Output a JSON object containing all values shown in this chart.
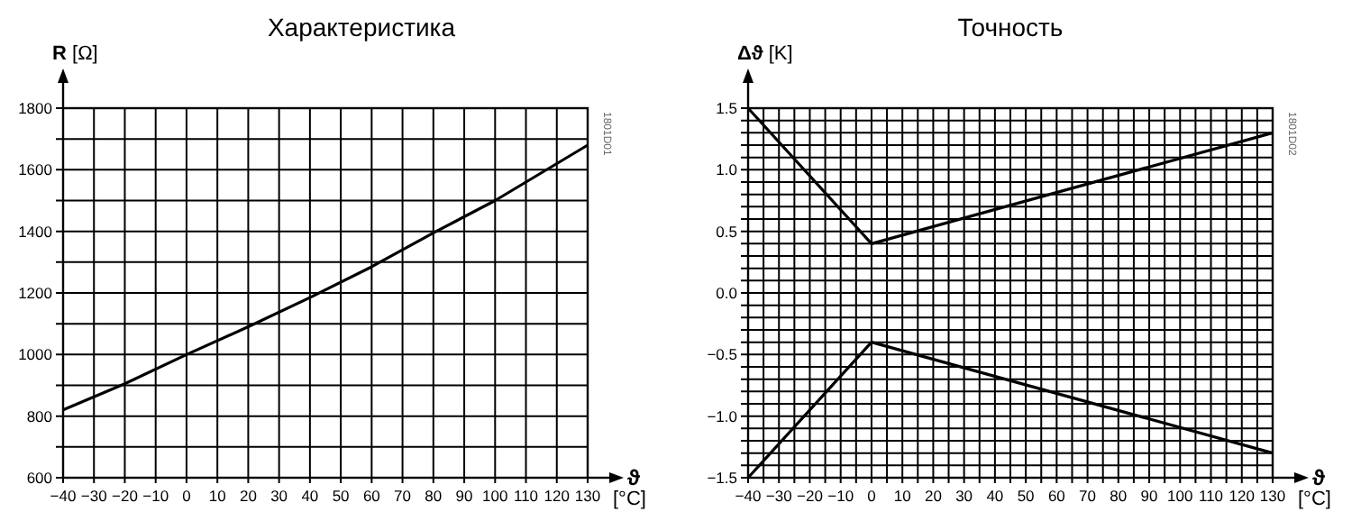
{
  "chart_data": [
    {
      "type": "line",
      "title": "Характеристика",
      "ylabel": "R [Ω]",
      "xlabel": "ϑ [°C]",
      "grid": true,
      "marker": "none",
      "line_style": "solid",
      "annotations": [
        "1801D01"
      ],
      "xlim": [
        -40,
        130
      ],
      "ylim": [
        600,
        1800
      ],
      "xticks": [
        {
          "value": -40,
          "label": "−40"
        },
        {
          "value": -30,
          "label": "−30"
        },
        {
          "value": -20,
          "label": "−20"
        },
        {
          "value": -10,
          "label": "−10"
        },
        0,
        10,
        20,
        30,
        40,
        50,
        60,
        70,
        80,
        90,
        100,
        110,
        120,
        130
      ],
      "yticks": [
        600,
        {
          "value": 700,
          "label": null
        },
        800,
        {
          "value": 900,
          "label": null
        },
        1000,
        {
          "value": 1100,
          "label": null
        },
        1200,
        {
          "value": 1300,
          "label": null
        },
        1400,
        {
          "value": 1500,
          "label": null
        },
        1600,
        {
          "value": 1700,
          "label": null
        },
        1800
      ],
      "series": [
        {
          "color": "#000000",
          "x": [
            -40,
            -20,
            0,
            20,
            40,
            60,
            80,
            100,
            120,
            130
          ],
          "values": [
            820,
            905,
            1000,
            1090,
            1185,
            1285,
            1395,
            1500,
            1620,
            1680
          ]
        }
      ]
    },
    {
      "type": "line",
      "title": "Точность",
      "ylabel": "Δϑ [K]",
      "xlabel": "ϑ [°C]",
      "grid": true,
      "marker": "none",
      "line_style": "solid",
      "annotations": [
        "1801D02"
      ],
      "xlim": [
        -40,
        130
      ],
      "ylim": [
        -1.5,
        1.5
      ],
      "xticks": [
        {
          "value": -40,
          "label": "−40"
        },
        {
          "value": -35,
          "label": null
        },
        {
          "value": -30,
          "label": "−30"
        },
        {
          "value": -25,
          "label": null
        },
        {
          "value": -20,
          "label": "−20"
        },
        {
          "value": -15,
          "label": null
        },
        {
          "value": -10,
          "label": "−10"
        },
        {
          "value": -5,
          "label": null
        },
        0,
        {
          "value": 5,
          "label": null
        },
        10,
        {
          "value": 15,
          "label": null
        },
        20,
        {
          "value": 25,
          "label": null
        },
        30,
        {
          "value": 35,
          "label": null
        },
        40,
        {
          "value": 45,
          "label": null
        },
        50,
        {
          "value": 55,
          "label": null
        },
        60,
        {
          "value": 65,
          "label": null
        },
        70,
        {
          "value": 75,
          "label": null
        },
        80,
        {
          "value": 85,
          "label": null
        },
        90,
        {
          "value": 95,
          "label": null
        },
        100,
        {
          "value": 105,
          "label": null
        },
        110,
        {
          "value": 115,
          "label": null
        },
        120,
        {
          "value": 125,
          "label": null
        },
        130
      ],
      "yticks": [
        {
          "value": -1.5,
          "label": "−1.5"
        },
        {
          "value": -1.4,
          "label": null
        },
        {
          "value": -1.3,
          "label": null
        },
        {
          "value": -1.2,
          "label": null
        },
        {
          "value": -1.1,
          "label": null
        },
        {
          "value": -1.0,
          "label": "−1.0"
        },
        {
          "value": -0.9,
          "label": null
        },
        {
          "value": -0.8,
          "label": null
        },
        {
          "value": -0.7,
          "label": null
        },
        {
          "value": -0.6,
          "label": null
        },
        {
          "value": -0.5,
          "label": "−0.5"
        },
        {
          "value": -0.4,
          "label": null
        },
        {
          "value": -0.3,
          "label": null
        },
        {
          "value": -0.2,
          "label": null
        },
        {
          "value": -0.1,
          "label": null
        },
        {
          "value": 0,
          "label": "0.0"
        },
        {
          "value": 0.1,
          "label": null
        },
        {
          "value": 0.2,
          "label": null
        },
        {
          "value": 0.3,
          "label": null
        },
        {
          "value": 0.4,
          "label": null
        },
        {
          "value": 0.5,
          "label": "0.5"
        },
        {
          "value": 0.6,
          "label": null
        },
        {
          "value": 0.7,
          "label": null
        },
        {
          "value": 0.8,
          "label": null
        },
        {
          "value": 0.9,
          "label": null
        },
        {
          "value": 1.0,
          "label": "1.0"
        },
        {
          "value": 1.1,
          "label": null
        },
        {
          "value": 1.2,
          "label": null
        },
        {
          "value": 1.3,
          "label": null
        },
        {
          "value": 1.4,
          "label": null
        },
        {
          "value": 1.5,
          "label": "1.5"
        }
      ],
      "series": [
        {
          "color": "#000000",
          "x": [
            -40,
            0,
            130
          ],
          "values": [
            1.5,
            0.4,
            1.3
          ]
        },
        {
          "color": "#000000",
          "x": [
            -40,
            0,
            130
          ],
          "values": [
            -1.5,
            -0.4,
            -1.3
          ]
        }
      ]
    }
  ]
}
